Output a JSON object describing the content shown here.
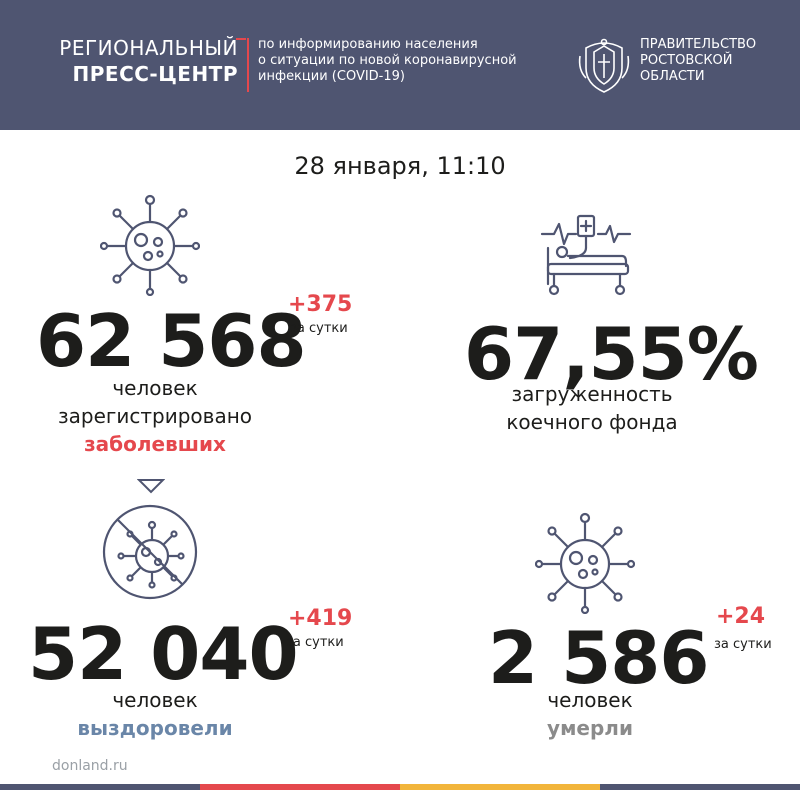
{
  "header": {
    "brand_line1": "РЕГИОНАЛЬНЫЙ",
    "brand_line2": "ПРЕСС-ЦЕНТР",
    "subtitle_line1": "по информированию населения",
    "subtitle_line2": "о ситуации по новой коронавирусной",
    "subtitle_line3": "инфекции (COVID-19)",
    "gov_line1": "ПРАВИТЕЛЬСТВО",
    "gov_line2": "РОСТОВСКОЙ",
    "gov_line3": "ОБЛАСТИ"
  },
  "date": "28 января, 11:10",
  "stats": {
    "infected": {
      "value": "62 568",
      "delta": "+375",
      "per_day": "за сутки",
      "line1": "человек",
      "line2": "зарегистрировано",
      "line3": "заболевших"
    },
    "beds": {
      "value": "67,55%",
      "line1": "загруженность",
      "line2": "коечного фонда"
    },
    "recovered": {
      "value": "52 040",
      "delta": "+419",
      "per_day": "за сутки",
      "line1": "человек",
      "line2": "выздоровели"
    },
    "died": {
      "value": "2 586",
      "delta": "+24",
      "per_day": "за сутки",
      "line1": "человек",
      "line2": "умерли"
    }
  },
  "footer": {
    "site": "donland.ru"
  },
  "colors": {
    "header_bg": "#4f5571",
    "accent_red": "#e5484d",
    "recovered_blue": "#6a86a8",
    "died_gray": "#8b8b8b",
    "bottom_stripe": [
      "#4f5571",
      "#e5484d",
      "#f2b53b",
      "#4f5571"
    ]
  },
  "icons": [
    "coat-of-arms-emblem",
    "virus-icon",
    "hospital-bed-icon",
    "virus-crossed-icon",
    "triangle-down-icon"
  ]
}
